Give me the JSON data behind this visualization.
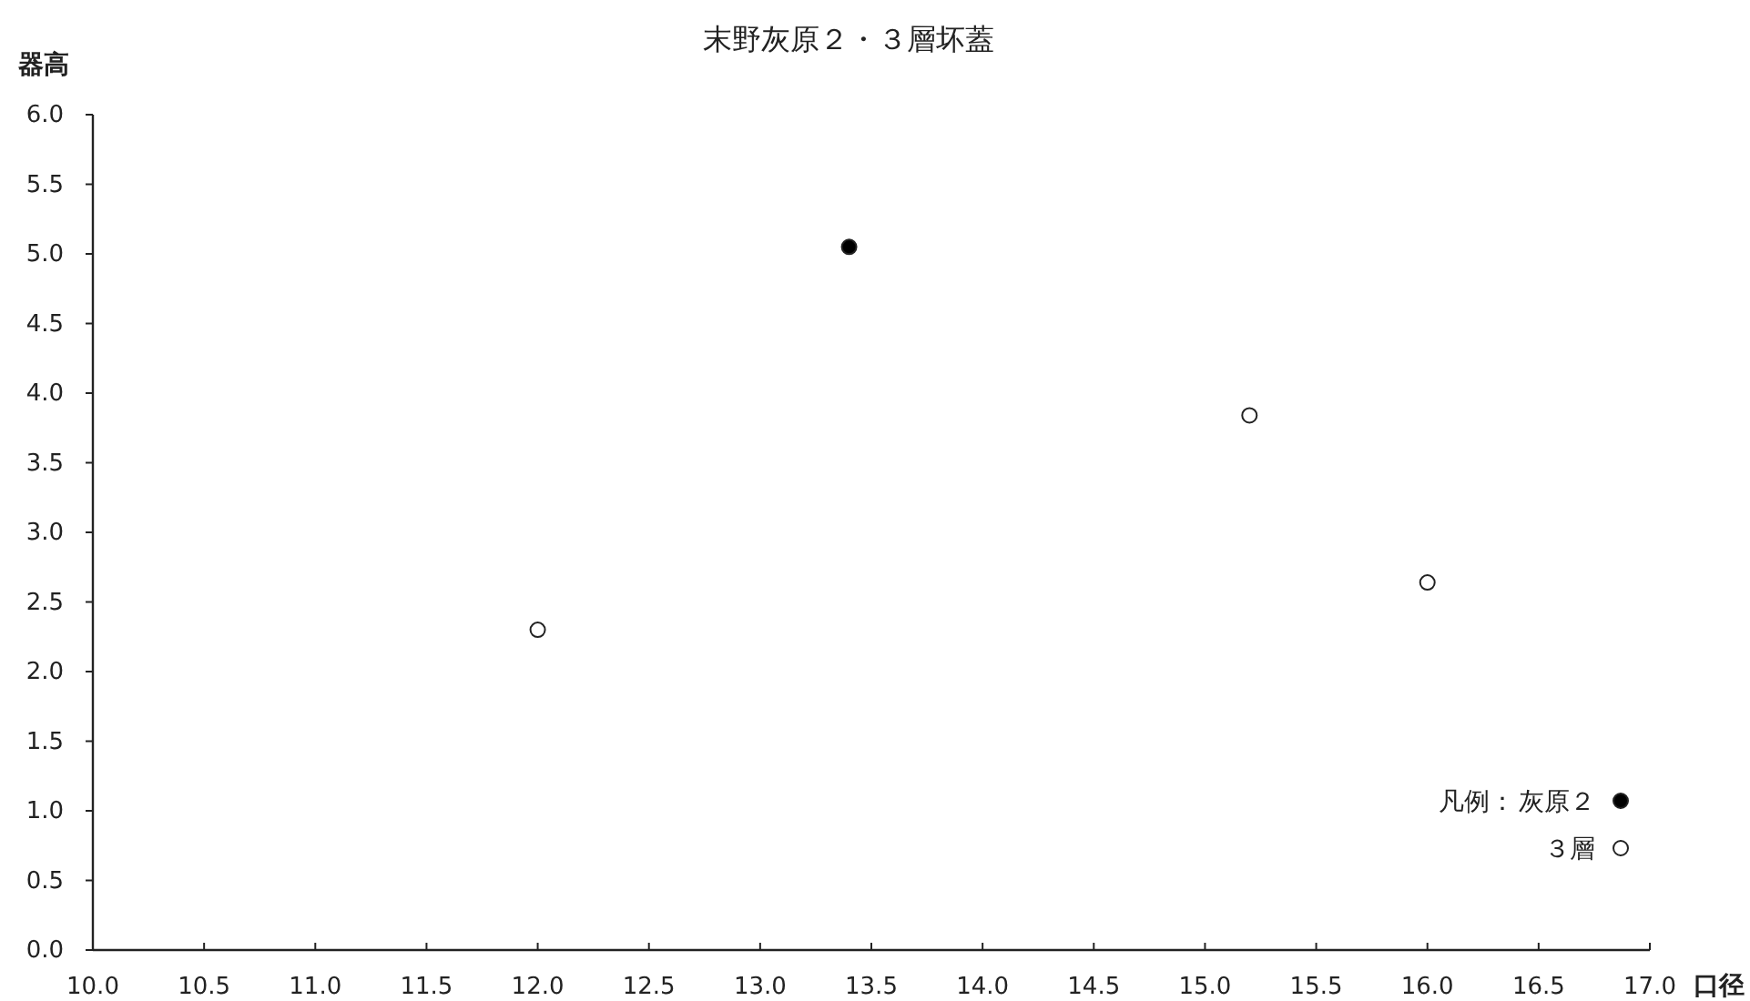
{
  "chart_data": {
    "type": "scatter",
    "title": "末野灰原２・３層坏蓋",
    "xlabel": "口径",
    "ylabel": "器高",
    "legend_title": "凡例：",
    "legend": "bottom right",
    "marker": "circle",
    "grid": false,
    "xlim": [
      10,
      17
    ],
    "xticks": [
      {
        "value": 10,
        "label": "10.0"
      },
      10.5,
      {
        "value": 11,
        "label": "11.0"
      },
      11.5,
      {
        "value": 12,
        "label": "12.0"
      },
      12.5,
      {
        "value": 13,
        "label": "13.0"
      },
      13.5,
      {
        "value": 14,
        "label": "14.0"
      },
      14.5,
      {
        "value": 15,
        "label": "15.0"
      },
      15.5,
      {
        "value": 16,
        "label": "16.0"
      },
      16.5,
      {
        "value": 17,
        "label": "17.0"
      }
    ],
    "ylim": [
      0,
      6
    ],
    "yticks": [
      {
        "value": 0,
        "label": "0.0"
      },
      0.5,
      {
        "value": 1,
        "label": "1.0"
      },
      1.5,
      {
        "value": 2,
        "label": "2.0"
      },
      2.5,
      {
        "value": 3,
        "label": "3.0"
      },
      3.5,
      {
        "value": 4,
        "label": "4.0"
      },
      4.5,
      {
        "value": 5,
        "label": "5.0"
      },
      5.5,
      {
        "value": 6,
        "label": "6.0"
      }
    ],
    "series": [
      {
        "name": "灰原２",
        "color": "#000000",
        "x": [
          13.4
        ],
        "values": [
          5.05
        ]
      },
      {
        "name": "３層",
        "color": "#ffffff",
        "x": [
          12.0,
          15.2,
          16.0
        ],
        "values": [
          2.3,
          3.84,
          2.64
        ]
      }
    ]
  }
}
